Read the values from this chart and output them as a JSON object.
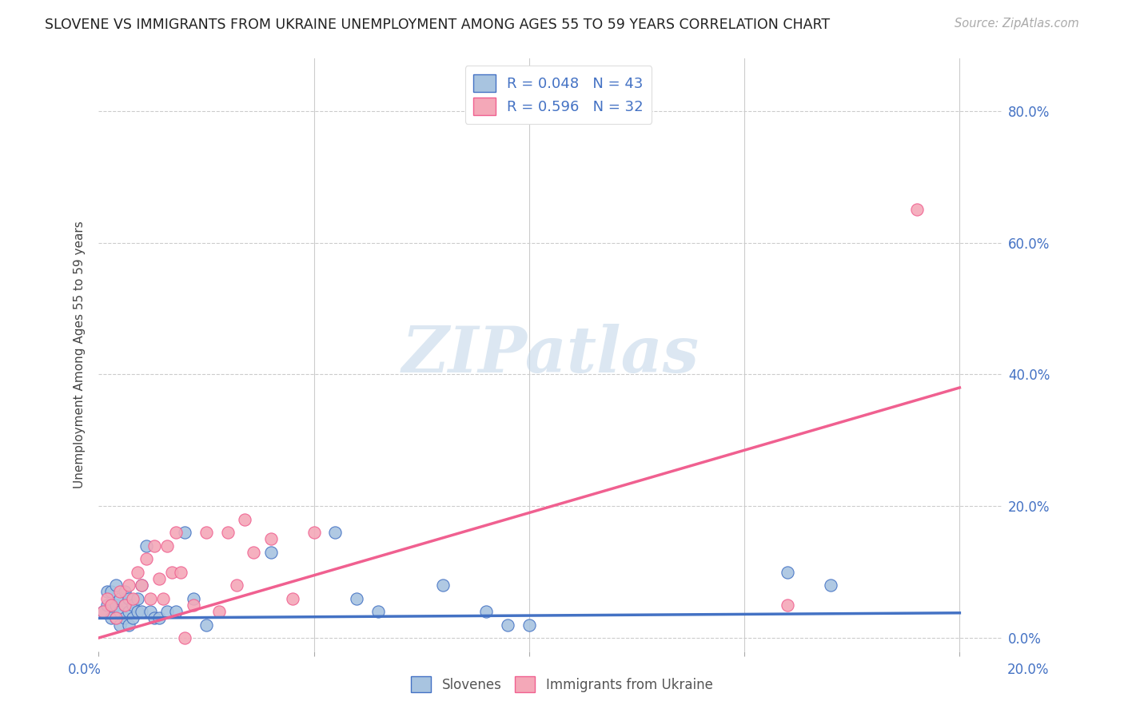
{
  "title": "SLOVENE VS IMMIGRANTS FROM UKRAINE UNEMPLOYMENT AMONG AGES 55 TO 59 YEARS CORRELATION CHART",
  "source": "Source: ZipAtlas.com",
  "ylabel": "Unemployment Among Ages 55 to 59 years",
  "ylabel_ticks": [
    "0.0%",
    "20.0%",
    "40.0%",
    "60.0%",
    "80.0%"
  ],
  "ylabel_tick_vals": [
    0.0,
    0.2,
    0.4,
    0.6,
    0.8
  ],
  "xtick_vals": [
    0.0,
    0.05,
    0.1,
    0.15,
    0.2
  ],
  "xtick_labels": [
    "0.0%",
    "",
    "",
    "",
    "20.0%"
  ],
  "xlim": [
    0.0,
    0.21
  ],
  "ylim": [
    -0.02,
    0.88
  ],
  "legend1_label": "R = 0.048   N = 43",
  "legend2_label": "R = 0.596   N = 32",
  "legend_color1": "#a8c4e0",
  "legend_color2": "#f4a8b8",
  "blue_color": "#4472c4",
  "pink_color": "#f06090",
  "blue_line_color": "#4472c4",
  "pink_line_color": "#f06090",
  "grid_color": "#cccccc",
  "slovenes_x": [
    0.001,
    0.002,
    0.002,
    0.003,
    0.003,
    0.003,
    0.004,
    0.004,
    0.004,
    0.005,
    0.005,
    0.005,
    0.006,
    0.006,
    0.006,
    0.007,
    0.007,
    0.007,
    0.008,
    0.008,
    0.009,
    0.009,
    0.01,
    0.01,
    0.011,
    0.012,
    0.013,
    0.014,
    0.016,
    0.018,
    0.02,
    0.022,
    0.025,
    0.04,
    0.055,
    0.06,
    0.065,
    0.08,
    0.09,
    0.095,
    0.1,
    0.16,
    0.17
  ],
  "slovenes_y": [
    0.04,
    0.05,
    0.07,
    0.03,
    0.05,
    0.07,
    0.03,
    0.05,
    0.08,
    0.02,
    0.04,
    0.06,
    0.03,
    0.05,
    0.07,
    0.02,
    0.04,
    0.06,
    0.03,
    0.05,
    0.04,
    0.06,
    0.04,
    0.08,
    0.14,
    0.04,
    0.03,
    0.03,
    0.04,
    0.04,
    0.16,
    0.06,
    0.02,
    0.13,
    0.16,
    0.06,
    0.04,
    0.08,
    0.04,
    0.02,
    0.02,
    0.1,
    0.08
  ],
  "ukraine_x": [
    0.001,
    0.002,
    0.003,
    0.004,
    0.005,
    0.006,
    0.007,
    0.008,
    0.009,
    0.01,
    0.011,
    0.012,
    0.013,
    0.014,
    0.015,
    0.016,
    0.017,
    0.018,
    0.019,
    0.02,
    0.022,
    0.025,
    0.028,
    0.03,
    0.032,
    0.034,
    0.036,
    0.04,
    0.045,
    0.05,
    0.16,
    0.19
  ],
  "ukraine_y": [
    0.04,
    0.06,
    0.05,
    0.03,
    0.07,
    0.05,
    0.08,
    0.06,
    0.1,
    0.08,
    0.12,
    0.06,
    0.14,
    0.09,
    0.06,
    0.14,
    0.1,
    0.16,
    0.1,
    0.0,
    0.05,
    0.16,
    0.04,
    0.16,
    0.08,
    0.18,
    0.13,
    0.15,
    0.06,
    0.16,
    0.05,
    0.65
  ],
  "blue_trend_x": [
    0.0,
    0.2
  ],
  "blue_trend_y": [
    0.03,
    0.038
  ],
  "pink_trend_x": [
    0.0,
    0.2
  ],
  "pink_trend_y": [
    0.0,
    0.38
  ],
  "watermark_text": "ZIPatlas",
  "watermark_color": "#c5d8ea",
  "scatter_size": 120
}
